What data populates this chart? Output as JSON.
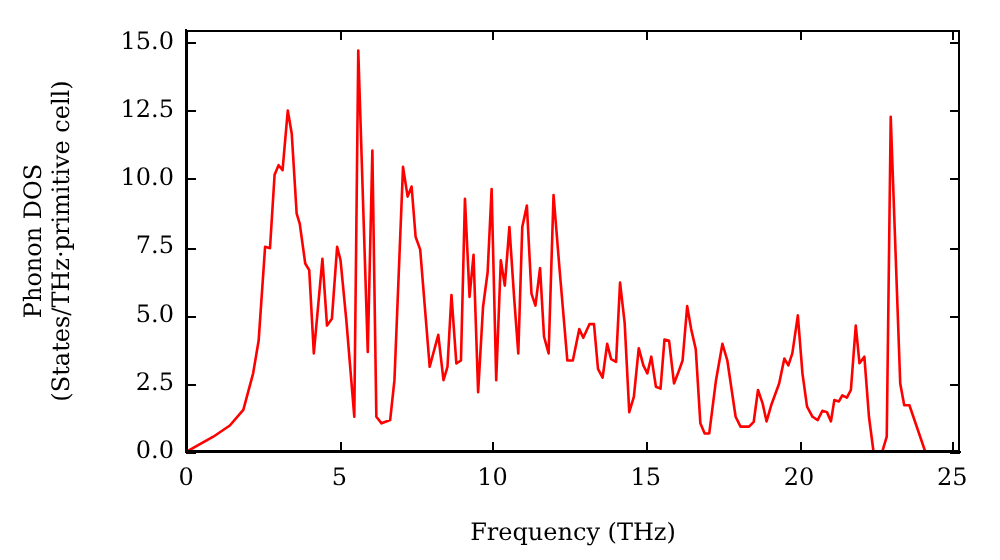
{
  "chart_data": {
    "type": "line",
    "xlabel": "Frequency (THz)",
    "ylabel": "Phonon DOS\n(States/THz·primitive cell)",
    "xlim": [
      0,
      25.25
    ],
    "ylim": [
      0,
      15.45
    ],
    "xticks": [
      0,
      5,
      10,
      15,
      20,
      25
    ],
    "yticks": [
      {
        "value": 0,
        "label": "0.0"
      },
      {
        "value": 2.5,
        "label": "2.5"
      },
      {
        "value": 5,
        "label": "5.0"
      },
      {
        "value": 7.5,
        "label": "7.5"
      },
      {
        "value": 10,
        "label": "10.0"
      },
      {
        "value": 12.5,
        "label": "12.5"
      },
      {
        "value": 15,
        "label": "15.0"
      }
    ],
    "grid": false,
    "legend": false,
    "marker": "none",
    "line_style": "solid",
    "series": [
      {
        "color": "#ff0000",
        "x": [
          0,
          0.89,
          1.43,
          1.87,
          2.19,
          2.37,
          2.58,
          2.74,
          2.89,
          3.02,
          3.15,
          3.32,
          3.45,
          3.61,
          3.71,
          3.89,
          4.02,
          4.17,
          4.45,
          4.6,
          4.76,
          4.93,
          5.04,
          5.23,
          5.49,
          5.62,
          5.93,
          6.08,
          6.21,
          6.38,
          6.66,
          6.8,
          7.08,
          7.23,
          7.36,
          7.49,
          7.64,
          7.95,
          8.23,
          8.4,
          8.53,
          8.66,
          8.82,
          8.97,
          9.1,
          9.25,
          9.38,
          9.53,
          9.69,
          9.84,
          9.97,
          10.12,
          10.27,
          10.4,
          10.55,
          10.71,
          10.84,
          10.97,
          11.12,
          11.27,
          11.4,
          11.55,
          11.68,
          11.83,
          11.99,
          12.18,
          12.44,
          12.62,
          12.83,
          12.96,
          13.16,
          13.31,
          13.44,
          13.59,
          13.74,
          13.87,
          14.03,
          14.16,
          14.31,
          14.46,
          14.61,
          14.77,
          14.92,
          15.05,
          15.18,
          15.33,
          15.48,
          15.61,
          15.76,
          15.92,
          16.05,
          16.2,
          16.35,
          16.48,
          16.63,
          16.78,
          16.92,
          17.07,
          17.29,
          17.5,
          17.66,
          17.93,
          18.09,
          18.37,
          18.52,
          18.66,
          18.81,
          18.94,
          19.09,
          19.35,
          19.52,
          19.65,
          19.78,
          19.96,
          20.11,
          20.26,
          20.44,
          20.61,
          20.76,
          20.91,
          21.04,
          21.15,
          21.3,
          21.41,
          21.56,
          21.69,
          21.85,
          21.97,
          22.13,
          22.28,
          22.43,
          22.71,
          22.86,
          22.99,
          23.3,
          23.43,
          23.6,
          24.12
        ],
        "values": [
          0,
          0.56,
          0.97,
          1.54,
          2.88,
          4.08,
          7.51,
          7.46,
          10.15,
          10.5,
          10.32,
          12.5,
          11.65,
          8.73,
          8.36,
          6.9,
          6.66,
          3.61,
          7.07,
          4.63,
          4.88,
          7.51,
          7.03,
          4.83,
          1.29,
          14.7,
          3.66,
          11.04,
          1.29,
          1.05,
          1.17,
          2.63,
          10.44,
          9.35,
          9.72,
          7.88,
          7.41,
          3.12,
          4.29,
          2.63,
          3.12,
          5.75,
          3.24,
          3.35,
          9.27,
          5.68,
          7.22,
          2.19,
          5.31,
          6.58,
          9.63,
          2.63,
          7.02,
          6.09,
          8.24,
          5.56,
          3.61,
          8.24,
          9.02,
          5.8,
          5.36,
          6.73,
          4.22,
          3.61,
          9.41,
          6.78,
          3.35,
          3.35,
          4.5,
          4.18,
          4.68,
          4.68,
          3.04,
          2.72,
          3.96,
          3.4,
          3.3,
          6.2,
          4.73,
          1.46,
          2.02,
          3.8,
          3.17,
          2.88,
          3.49,
          2.39,
          2.32,
          4.12,
          4.07,
          2.51,
          2.88,
          3.35,
          5.34,
          4.5,
          3.76,
          1.05,
          0.68,
          0.68,
          2.63,
          3.96,
          3.35,
          1.29,
          0.93,
          0.93,
          1.1,
          2.27,
          1.78,
          1.12,
          1.71,
          2.51,
          3.42,
          3.17,
          3.61,
          5.0,
          2.88,
          1.66,
          1.29,
          1.17,
          1.51,
          1.46,
          1.12,
          1.9,
          1.85,
          2.07,
          1.99,
          2.27,
          4.63,
          3.25,
          3.49,
          1.29,
          0,
          0,
          0.56,
          12.27,
          2.51,
          1.71,
          1.71,
          0
        ]
      }
    ]
  }
}
